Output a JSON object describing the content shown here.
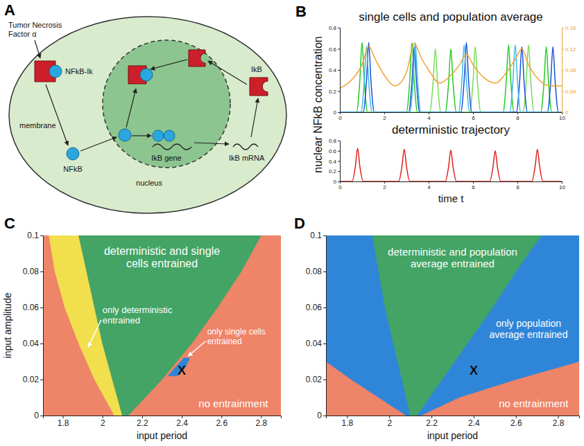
{
  "diagram": {
    "panel": "A",
    "labels": {
      "tnf": "Tumor Necrosis Factor α",
      "complex": "NFkB-Ik",
      "nfkb": "NFkB",
      "membrane": "membrane",
      "nucleus": "nucleus",
      "gene": "IkB gene",
      "mrna": "IkB mRNA",
      "ikb": "IkB"
    }
  },
  "chart_data": [
    {
      "type": "line",
      "panel": "B",
      "title": "single cells and population average",
      "ylabel": "nuclear NFkB concentration",
      "xlim": [
        0,
        10
      ],
      "xticks": [
        0,
        2,
        4,
        6,
        8,
        10
      ],
      "ylim": [
        0,
        0.8
      ],
      "yticks": [
        0,
        0.2,
        0.4,
        0.6,
        0.8
      ],
      "y2lim": [
        0,
        0.16
      ],
      "y2ticks": [
        0,
        0.04,
        0.08,
        0.12,
        0.16
      ],
      "series": [
        {
          "color": "#22cc22",
          "x": [
            0,
            0.75,
            0.9,
            1.0,
            1.1,
            1.25,
            3.0,
            3.15,
            3.25,
            3.35,
            3.5,
            4.75,
            4.9,
            5.0,
            5.1,
            5.25,
            7.35,
            7.5,
            7.6,
            7.7,
            7.85,
            9.05,
            9.2,
            9.3,
            9.4,
            9.55,
            10
          ],
          "values": [
            0,
            0,
            0.3,
            0.66,
            0.3,
            0,
            0,
            0.3,
            0.66,
            0.3,
            0,
            0,
            0.28,
            0.6,
            0.28,
            0,
            0,
            0.3,
            0.64,
            0.3,
            0,
            0,
            0.29,
            0.62,
            0.29,
            0,
            0
          ]
        },
        {
          "color": "#77dd55",
          "x": [
            0,
            4.05,
            4.2,
            4.3,
            4.4,
            4.55,
            5.85,
            6.0,
            6.1,
            6.2,
            6.35,
            8.25,
            8.4,
            8.5,
            8.6,
            8.75,
            10
          ],
          "values": [
            0,
            0,
            0.28,
            0.6,
            0.28,
            0,
            0,
            0.29,
            0.62,
            0.29,
            0,
            0,
            0.3,
            0.64,
            0.3,
            0,
            0
          ]
        },
        {
          "color": "#1a4fd6",
          "x": [
            0,
            1.05,
            1.2,
            1.3,
            1.4,
            1.55,
            3.1,
            3.25,
            3.35,
            3.45,
            3.6,
            5.45,
            5.6,
            5.7,
            5.8,
            5.95,
            7.95,
            8.1,
            8.2,
            8.3,
            8.45,
            9.35,
            9.5,
            9.6,
            9.7,
            9.85,
            10
          ],
          "values": [
            0,
            0,
            0.3,
            0.66,
            0.3,
            0,
            0,
            0.29,
            0.62,
            0.29,
            0,
            0,
            0.3,
            0.66,
            0.3,
            0,
            0,
            0.29,
            0.62,
            0.29,
            0,
            0,
            0.29,
            0.62,
            0.29,
            0,
            0
          ]
        },
        {
          "color": "#3fb8e8",
          "x": [
            0,
            0.95,
            1.1,
            1.2,
            1.3,
            1.45,
            3.15,
            3.3,
            3.4,
            3.5,
            3.65,
            5.35,
            5.5,
            5.6,
            5.7,
            5.85,
            7.65,
            7.8,
            7.9,
            8.0,
            8.15,
            10
          ],
          "values": [
            0,
            0,
            0.29,
            0.62,
            0.29,
            0,
            0,
            0.3,
            0.66,
            0.3,
            0,
            0,
            0.3,
            0.64,
            0.3,
            0,
            0,
            0.3,
            0.64,
            0.3,
            0,
            0
          ]
        },
        {
          "color": "#f0a030",
          "axis": "y2",
          "x": [
            0,
            0.5,
            1.0,
            1.3,
            1.6,
            2.0,
            2.5,
            3.0,
            3.35,
            3.7,
            4.0,
            4.5,
            5.0,
            5.4,
            5.7,
            6.0,
            6.5,
            7.0,
            7.5,
            7.9,
            8.2,
            8.5,
            9.0,
            9.5,
            10
          ],
          "values": [
            0.045,
            0.06,
            0.09,
            0.125,
            0.1,
            0.07,
            0.05,
            0.075,
            0.13,
            0.1,
            0.08,
            0.055,
            0.07,
            0.09,
            0.11,
            0.09,
            0.065,
            0.055,
            0.075,
            0.1,
            0.12,
            0.09,
            0.06,
            0.05,
            0.05
          ]
        }
      ]
    },
    {
      "type": "line",
      "title": "deterministic trajectory",
      "xlabel": "time t",
      "xlim": [
        0,
        10
      ],
      "xticks": [
        0,
        2,
        4,
        6,
        8,
        10
      ],
      "ylim": [
        0,
        0.8
      ],
      "yticks": [
        0,
        0.2,
        0.4,
        0.6,
        0.8
      ],
      "series": [
        {
          "color": "#e0201c",
          "x": [
            0,
            0.55,
            0.7,
            0.8,
            0.9,
            1.05,
            2.65,
            2.8,
            2.9,
            3.0,
            3.15,
            4.75,
            4.9,
            5.0,
            5.1,
            5.25,
            6.75,
            6.9,
            7.0,
            7.1,
            7.25,
            8.65,
            8.8,
            8.9,
            9.0,
            9.15,
            10
          ],
          "values": [
            0,
            0,
            0.3,
            0.65,
            0.3,
            0,
            0,
            0.3,
            0.63,
            0.3,
            0,
            0,
            0.29,
            0.61,
            0.29,
            0,
            0,
            0.28,
            0.6,
            0.28,
            0,
            0,
            0.3,
            0.63,
            0.3,
            0,
            0
          ]
        }
      ]
    },
    {
      "type": "region_map",
      "panel": "C",
      "xlabel": "input period",
      "ylabel": "input amplitude",
      "xlim": [
        1.7,
        2.9
      ],
      "xticks": [
        1.8,
        2,
        2.2,
        2.4,
        2.6,
        2.8
      ],
      "ylim": [
        0,
        0.1
      ],
      "yticks": [
        0,
        0.02,
        0.04,
        0.06,
        0.08,
        0.1
      ],
      "regions": [
        {
          "name": "no entrainment",
          "color": "#ee8468",
          "amplitude": [
            0,
            0.1
          ],
          "left": [
            1.7,
            1.7
          ],
          "right": [
            2.9,
            2.9
          ]
        },
        {
          "name": "only deterministic entrained",
          "color": "#f2df4e",
          "amplitude": [
            0,
            0.02,
            0.04,
            0.06,
            0.08,
            0.1
          ],
          "left": [
            2.06,
            1.96,
            1.88,
            1.81,
            1.76,
            1.73
          ],
          "right": [
            2.1,
            2.05,
            2.0,
            1.96,
            1.92,
            1.88
          ]
        },
        {
          "name": "deterministic and single cells entrained",
          "color": "#43a466",
          "amplitude": [
            0,
            0.02,
            0.04,
            0.06,
            0.08,
            0.1
          ],
          "left": [
            2.1,
            2.05,
            2.0,
            1.96,
            1.92,
            1.88
          ],
          "right": [
            2.13,
            2.3,
            2.45,
            2.58,
            2.7,
            2.8
          ]
        },
        {
          "name": "only single cells entrained",
          "color": "#2f86d8",
          "amplitude": [
            0.022,
            0.027,
            0.032
          ],
          "left": [
            2.33,
            2.37,
            2.41
          ],
          "right": [
            2.38,
            2.42,
            2.44
          ]
        }
      ],
      "point": {
        "label": "X",
        "x": 2.4,
        "y": 0.025
      }
    },
    {
      "type": "region_map",
      "panel": "D",
      "xlabel": "input period",
      "xlim": [
        1.7,
        2.9
      ],
      "xticks": [
        1.8,
        2,
        2.2,
        2.4,
        2.6,
        2.8
      ],
      "ylim": [
        0,
        0.1
      ],
      "yticks": [
        0,
        0.02,
        0.04,
        0.06,
        0.08,
        0.1
      ],
      "regions": [
        {
          "name": "no entrainment",
          "color": "#ee8468",
          "amplitude": [
            0,
            0.1
          ],
          "left": [
            1.7,
            1.7
          ],
          "right": [
            2.9,
            2.9
          ]
        },
        {
          "name": "only population average entrained",
          "color": "#2f86d8",
          "amplitude": [
            0,
            0.01,
            0.02,
            0.03,
            0.1
          ],
          "left": [
            2.08,
            1.95,
            1.82,
            1.7,
            1.7
          ],
          "right": [
            2.15,
            2.33,
            2.6,
            2.9,
            2.9
          ]
        },
        {
          "name": "deterministic and population average entrained",
          "color": "#43a466",
          "amplitude": [
            0,
            0.02,
            0.04,
            0.06,
            0.08,
            0.1
          ],
          "left": [
            2.1,
            2.06,
            2.02,
            1.98,
            1.95,
            1.92
          ],
          "right": [
            2.13,
            2.25,
            2.37,
            2.49,
            2.6,
            2.72
          ]
        }
      ],
      "point": {
        "label": "X",
        "x": 2.4,
        "y": 0.025
      }
    }
  ]
}
